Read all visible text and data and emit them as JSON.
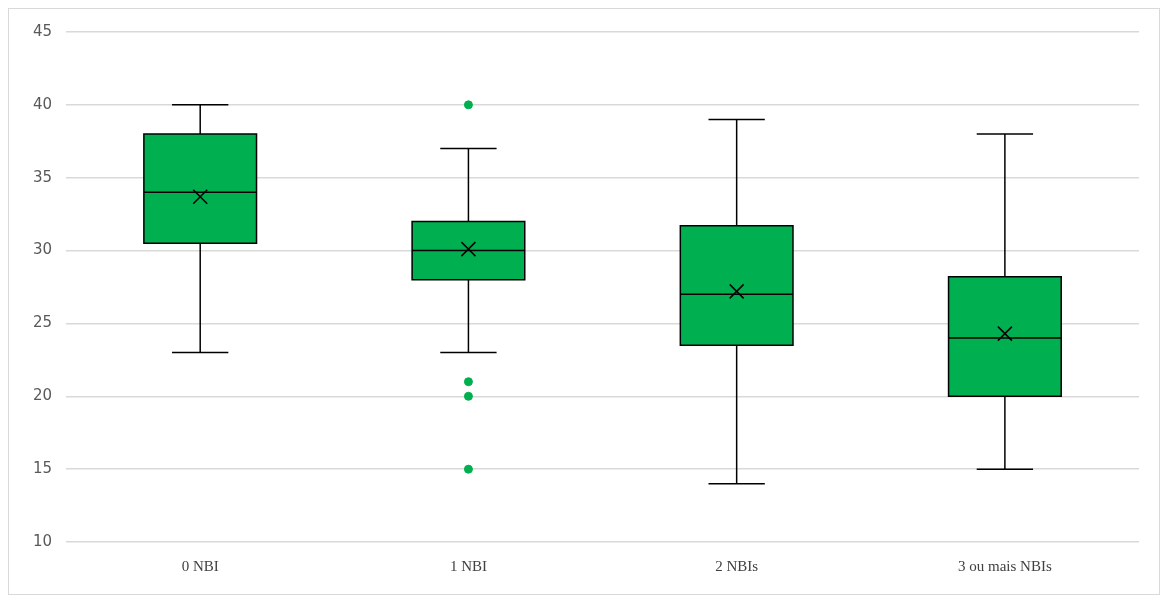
{
  "chart_data": {
    "type": "box",
    "categories": [
      "0 NBI",
      "1 NBI",
      "2 NBIs",
      "3 ou mais NBIs"
    ],
    "color": "#00b050",
    "boxes": [
      {
        "low": 23,
        "q1": 30.5,
        "median": 34,
        "q3": 38,
        "high": 40,
        "mean": 33.7
      },
      {
        "low": 23,
        "q1": 28,
        "median": 30,
        "q3": 32,
        "high": 37,
        "mean": 30.1,
        "outliers": [
          40,
          21,
          20,
          15
        ]
      },
      {
        "low": 14,
        "q1": 23.5,
        "median": 27,
        "q3": 31.7,
        "high": 39,
        "mean": 27.2
      },
      {
        "low": 15,
        "q1": 20,
        "median": 24,
        "q3": 28.2,
        "high": 38,
        "mean": 24.3
      }
    ],
    "ylim": [
      10,
      45
    ],
    "yticks": [
      10,
      15,
      20,
      25,
      30,
      35,
      40,
      45
    ],
    "grid": "y",
    "legend": false
  }
}
